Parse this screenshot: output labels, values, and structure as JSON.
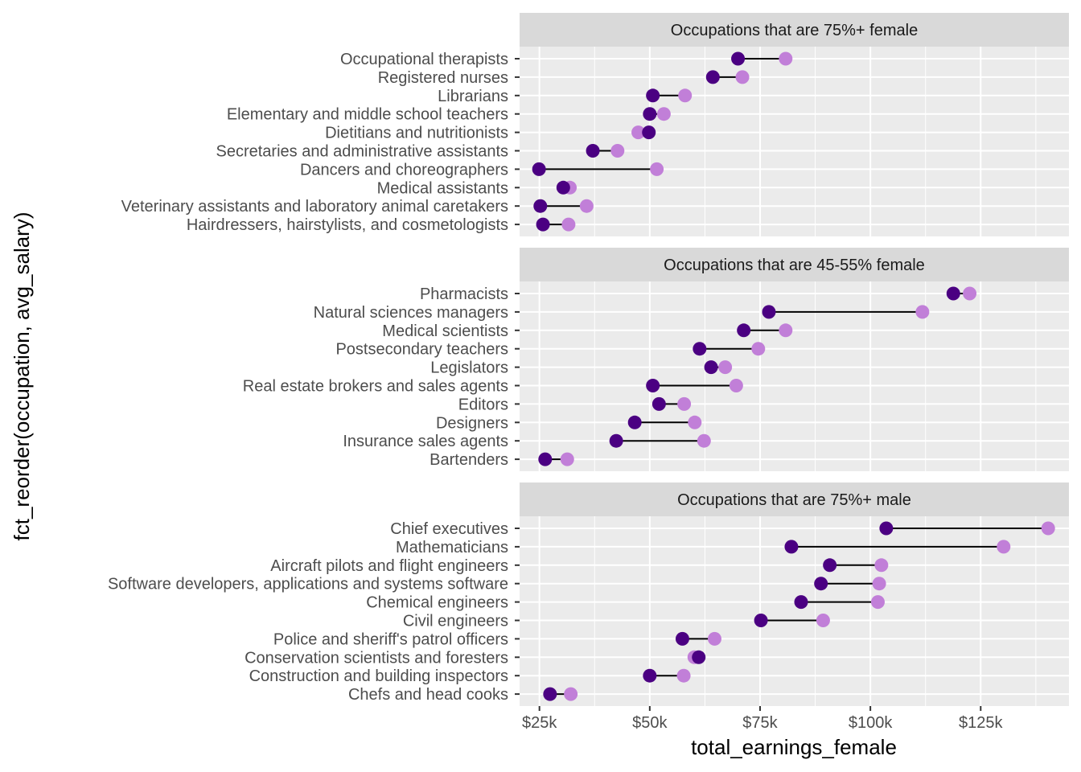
{
  "chart_data": {
    "type": "dumbbell",
    "xlabel": "total_earnings_female",
    "ylabel": "fct_reorder(occupation, avg_salary)",
    "xlim": [
      20500,
      145000
    ],
    "x_ticks": [
      25000,
      50000,
      75000,
      100000,
      125000
    ],
    "x_tick_labels": [
      "$25k",
      "$50k",
      "$75k",
      "$100k",
      "$125k"
    ],
    "grid": true,
    "colors": {
      "female_point": "#4b0082",
      "male_point": "#c17fd8",
      "segment": "#000000",
      "panel_bg": "#ebebeb",
      "strip_bg": "#d9d9d9",
      "grid": "#ffffff"
    },
    "panels": [
      {
        "title": "Occupations that are 75%+ female",
        "rows": [
          {
            "occupation": "Occupational therapists",
            "female": 70000,
            "male": 80800
          },
          {
            "occupation": "Registered nurses",
            "female": 64300,
            "male": 71000
          },
          {
            "occupation": "Librarians",
            "female": 50700,
            "male": 58000
          },
          {
            "occupation": "Elementary and middle school teachers",
            "female": 50000,
            "male": 53200
          },
          {
            "occupation": "Dietitians and nutritionists",
            "female": 49800,
            "male": 47400
          },
          {
            "occupation": "Secretaries and administrative assistants",
            "female": 37100,
            "male": 42700
          },
          {
            "occupation": "Dancers and choreographers",
            "female": 24900,
            "male": 51600
          },
          {
            "occupation": "Medical assistants",
            "female": 30400,
            "male": 31900
          },
          {
            "occupation": "Veterinary assistants and laboratory animal caretakers",
            "female": 25200,
            "male": 35700
          },
          {
            "occupation": "Hairdressers, hairstylists, and cosmetologists",
            "female": 25800,
            "male": 31600
          }
        ]
      },
      {
        "title": "Occupations that are 45-55% female",
        "rows": [
          {
            "occupation": "Pharmacists",
            "female": 118800,
            "male": 122500
          },
          {
            "occupation": "Natural sciences managers",
            "female": 77000,
            "male": 111800
          },
          {
            "occupation": "Medical scientists",
            "female": 71300,
            "male": 80800
          },
          {
            "occupation": "Postsecondary teachers",
            "female": 61300,
            "male": 74600
          },
          {
            "occupation": "Legislators",
            "female": 63900,
            "male": 67100
          },
          {
            "occupation": "Real estate brokers and sales agents",
            "female": 50700,
            "male": 69600
          },
          {
            "occupation": "Editors",
            "female": 52100,
            "male": 57800
          },
          {
            "occupation": "Designers",
            "female": 46600,
            "male": 60200
          },
          {
            "occupation": "Insurance sales agents",
            "female": 42400,
            "male": 62300
          },
          {
            "occupation": "Bartenders",
            "female": 26300,
            "male": 31300
          }
        ]
      },
      {
        "title": "Occupations that are 75%+ male",
        "rows": [
          {
            "occupation": "Chief executives",
            "female": 103600,
            "male": 140300
          },
          {
            "occupation": "Mathematicians",
            "female": 82100,
            "male": 130200
          },
          {
            "occupation": "Aircraft pilots and flight engineers",
            "female": 90800,
            "male": 102500
          },
          {
            "occupation": "Software developers, applications and systems software",
            "female": 88800,
            "male": 102000
          },
          {
            "occupation": "Chemical engineers",
            "female": 84300,
            "male": 101700
          },
          {
            "occupation": "Civil engineers",
            "female": 75200,
            "male": 89300
          },
          {
            "occupation": "Police and sheriff's patrol officers",
            "female": 57400,
            "male": 64700
          },
          {
            "occupation": "Conservation scientists and foresters",
            "female": 61100,
            "male": 60100
          },
          {
            "occupation": "Construction and building inspectors",
            "female": 50000,
            "male": 57700
          },
          {
            "occupation": "Chefs and head cooks",
            "female": 27400,
            "male": 32100
          }
        ]
      }
    ]
  }
}
